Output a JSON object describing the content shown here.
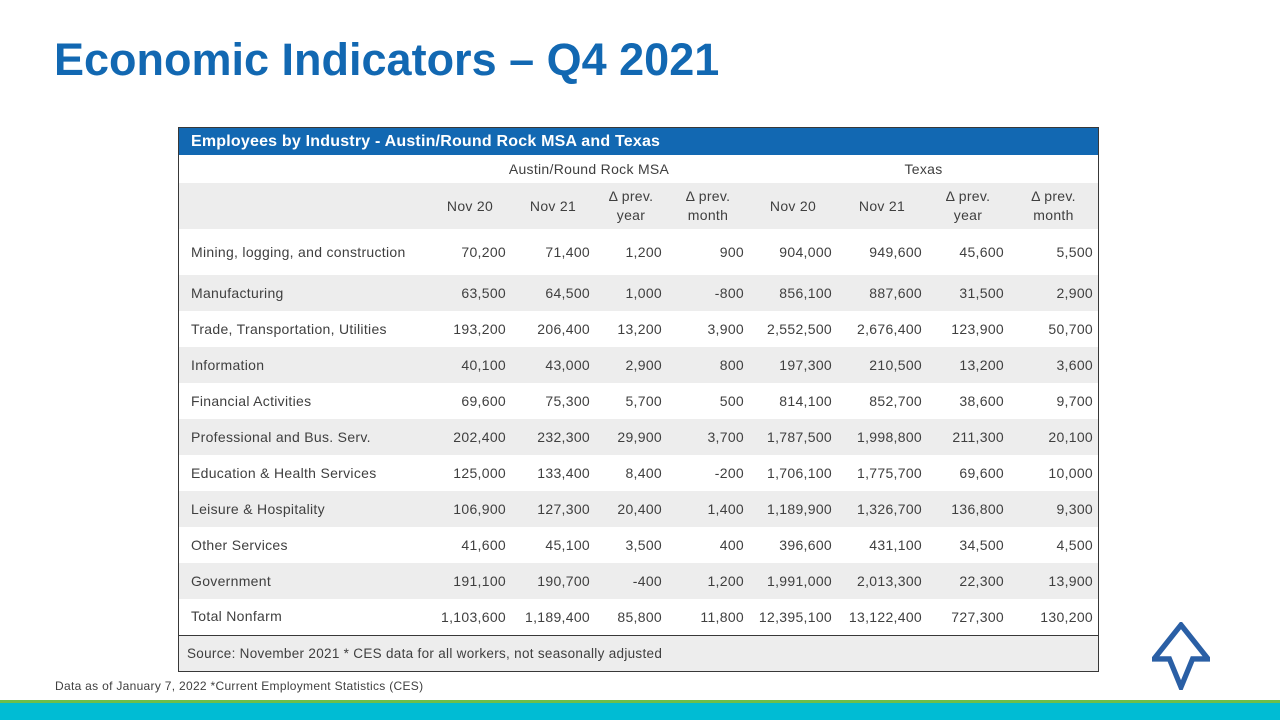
{
  "slide": {
    "title": "Economic Indicators – Q4 2021",
    "footnote": "Data as of January 7, 2022 *Current Employment Statistics (CES)"
  },
  "table": {
    "title": "Employees by Industry - Austin/Round Rock MSA and Texas",
    "region_groups": [
      "Austin/Round Rock MSA",
      "Texas"
    ],
    "column_headers": [
      {
        "line1": "Nov 20",
        "line2": ""
      },
      {
        "line1": "Nov 21",
        "line2": ""
      },
      {
        "line1": "Δ prev.",
        "line2": "year"
      },
      {
        "line1": "Δ prev.",
        "line2": "month"
      },
      {
        "line1": "Nov 20",
        "line2": ""
      },
      {
        "line1": "Nov 21",
        "line2": ""
      },
      {
        "line1": "Δ prev.",
        "line2": "year"
      },
      {
        "line1": "Δ prev.",
        "line2": "month"
      }
    ],
    "rows": [
      {
        "industry": "Mining, logging, and construction",
        "values": [
          "70,200",
          "71,400",
          "1,200",
          "900",
          "904,000",
          "949,600",
          "45,600",
          "5,500"
        ]
      },
      {
        "industry": "Manufacturing",
        "values": [
          "63,500",
          "64,500",
          "1,000",
          "-800",
          "856,100",
          "887,600",
          "31,500",
          "2,900"
        ]
      },
      {
        "industry": "Trade, Transportation, Utilities",
        "values": [
          "193,200",
          "206,400",
          "13,200",
          "3,900",
          "2,552,500",
          "2,676,400",
          "123,900",
          "50,700"
        ]
      },
      {
        "industry": "Information",
        "values": [
          "40,100",
          "43,000",
          "2,900",
          "800",
          "197,300",
          "210,500",
          "13,200",
          "3,600"
        ]
      },
      {
        "industry": "Financial Activities",
        "values": [
          "69,600",
          "75,300",
          "5,700",
          "500",
          "814,100",
          "852,700",
          "38,600",
          "9,700"
        ]
      },
      {
        "industry": "Professional and Bus. Serv.",
        "values": [
          "202,400",
          "232,300",
          "29,900",
          "3,700",
          "1,787,500",
          "1,998,800",
          "211,300",
          "20,100"
        ]
      },
      {
        "industry": "Education & Health Services",
        "values": [
          "125,000",
          "133,400",
          "8,400",
          "-200",
          "1,706,100",
          "1,775,700",
          "69,600",
          "10,000"
        ]
      },
      {
        "industry": "Leisure & Hospitality",
        "values": [
          "106,900",
          "127,300",
          "20,400",
          "1,400",
          "1,189,900",
          "1,326,700",
          "136,800",
          "9,300"
        ]
      },
      {
        "industry": "Other Services",
        "values": [
          "41,600",
          "45,100",
          "3,500",
          "400",
          "396,600",
          "431,100",
          "34,500",
          "4,500"
        ]
      },
      {
        "industry": "Government",
        "values": [
          "191,100",
          "190,700",
          "-400",
          "1,200",
          "1,991,000",
          "2,013,300",
          "22,300",
          "13,900"
        ]
      },
      {
        "industry": "Total Nonfarm",
        "values": [
          "1,103,600",
          "1,189,400",
          "85,800",
          "11,800",
          "12,395,100",
          "13,122,400",
          "727,300",
          "130,200"
        ]
      }
    ],
    "source": "Source: November 2021 * CES data for all workers, not seasonally adjusted"
  },
  "colors": {
    "title_blue": "#1268b2",
    "table_header_blue": "#1268b2",
    "stripe_gray": "#ededed",
    "text_dark": "#3f3f3f",
    "border_dark": "#383838",
    "bottom_bar_cyan": "#00bcd4",
    "bottom_line_green": "#6cbe4b",
    "logo_blue": "#2a5fa5"
  },
  "logo": {
    "name": "north-arrow-logo"
  }
}
